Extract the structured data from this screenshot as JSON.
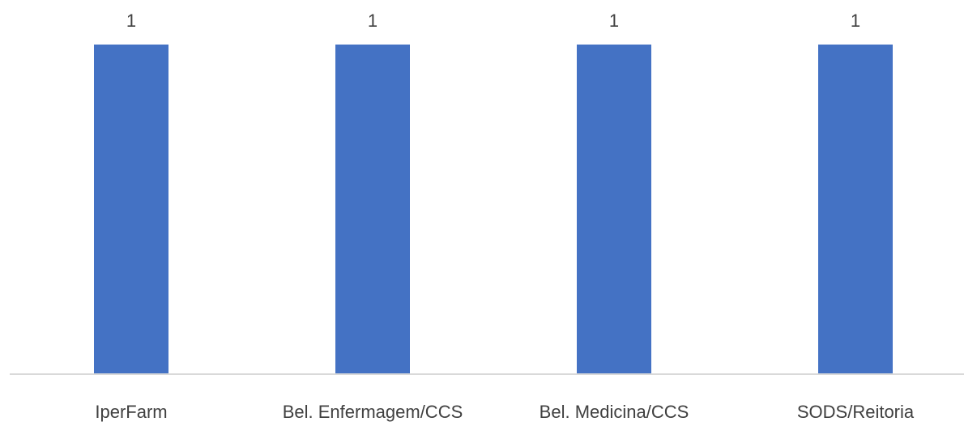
{
  "chart_data": {
    "type": "bar",
    "categories": [
      "IperFarm",
      "Bel. Enfermagem/CCS",
      "Bel. Medicina/CCS",
      "SODS/Reitoria"
    ],
    "values": [
      1,
      1,
      1,
      1
    ],
    "data_labels": [
      "1",
      "1",
      "1",
      "1"
    ],
    "title": "",
    "xlabel": "",
    "ylabel": "",
    "ylim": [
      0,
      1
    ],
    "grid": false,
    "legend": "none",
    "colors": {
      "bar": "#4472c4",
      "axis": "#d9d9d9",
      "text": "#404040"
    }
  }
}
